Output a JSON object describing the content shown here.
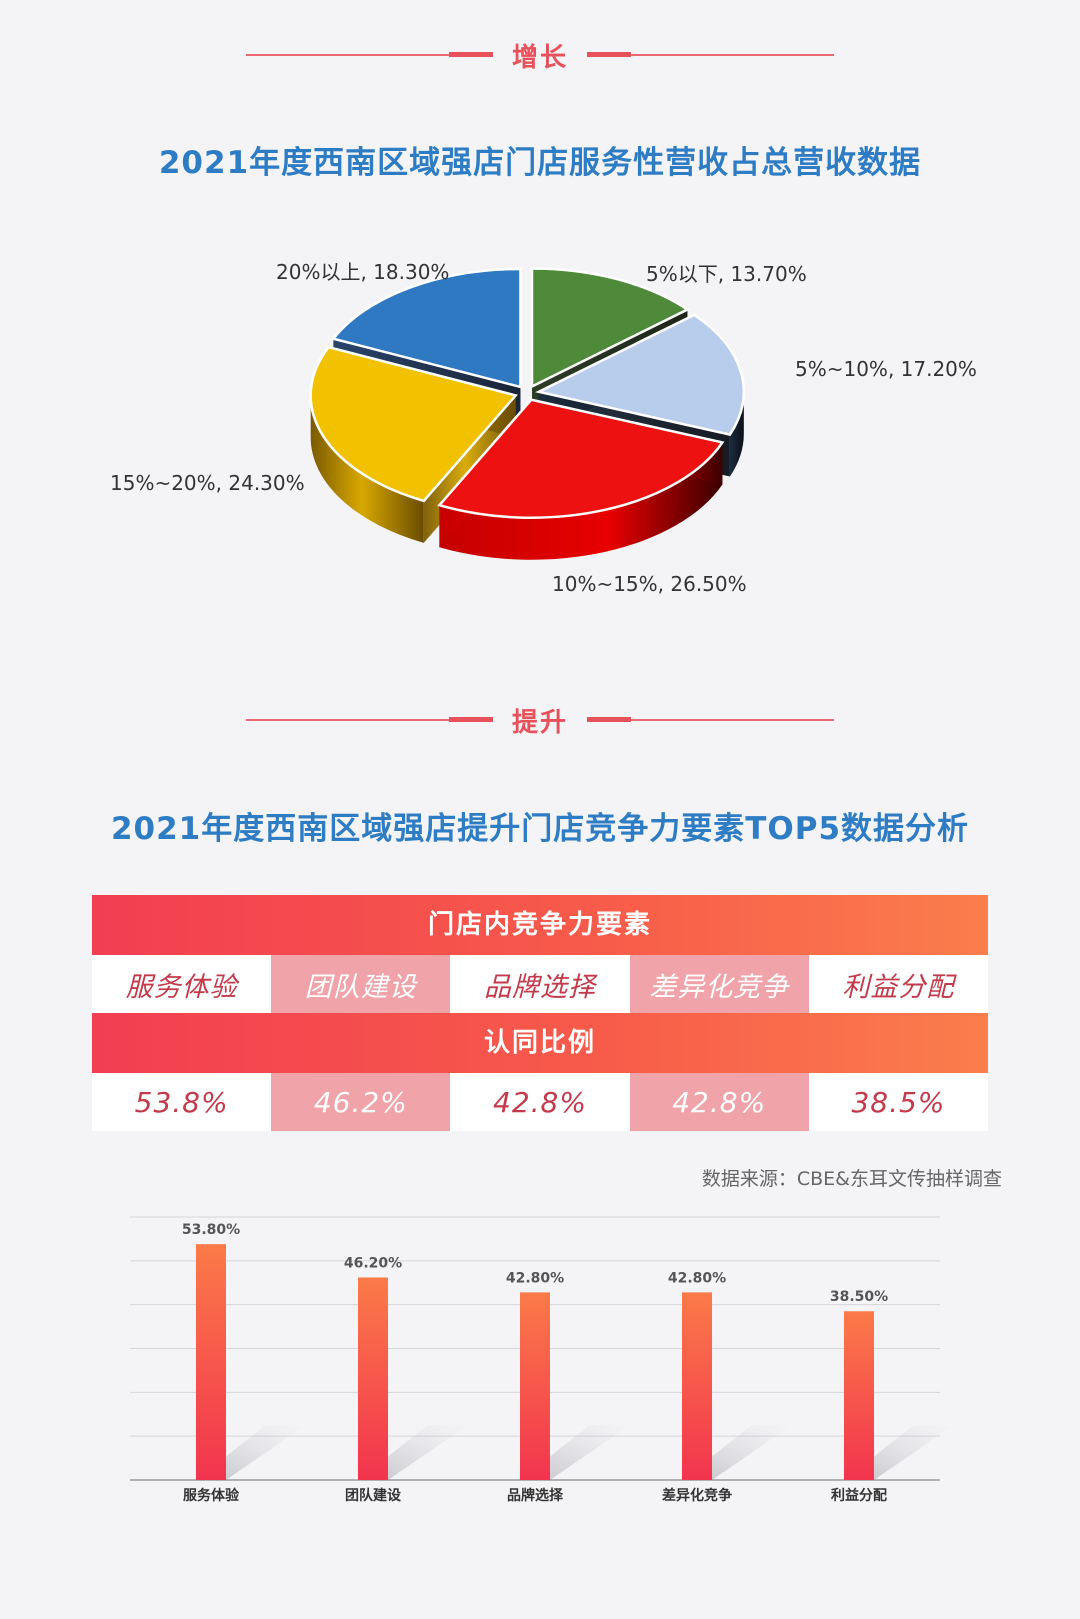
{
  "section1": {
    "label": "增长"
  },
  "section2": {
    "label": "提升"
  },
  "pie_title": "2021年度西南区域强店门店服务性营收占总营收数据",
  "table_title": "2021年度西南区域强店提升门店竞争力要素TOP5数据分析",
  "table": {
    "header1": "门店内竞争力要素",
    "factors": [
      "服务体验",
      "团队建设",
      "品牌选择",
      "差异化竞争",
      "利益分配"
    ],
    "header2": "认同比例",
    "ratios": [
      "53.8%",
      "46.2%",
      "42.8%",
      "42.8%",
      "38.5%"
    ]
  },
  "source": "数据来源：CBE&东耳文传抽样调查",
  "colors": {
    "accent_red": "#e8505a",
    "title_blue": "#2e7dc4",
    "pie": [
      "#2f78c2",
      "#4f8a3a",
      "#b8cdec",
      "#ee1111",
      "#f2c200"
    ]
  },
  "chart_data": [
    {
      "type": "pie",
      "title": "2021年度西南区域强店门店服务性营收占总营收数据",
      "slices": [
        {
          "label": "20%以上, 18.30%",
          "name": "20%以上",
          "value": 18.3
        },
        {
          "label": "5%以下, 13.70%",
          "name": "5%以下",
          "value": 13.7
        },
        {
          "label": "5%~10%, 17.20%",
          "name": "5%~10%",
          "value": 17.2
        },
        {
          "label": "10%~15%, 26.50%",
          "name": "10%~15%",
          "value": 26.5
        },
        {
          "label": "15%~20%, 24.30%",
          "name": "15%~20%",
          "value": 24.3
        }
      ]
    },
    {
      "type": "bar",
      "categories": [
        "服务体验",
        "团队建设",
        "品牌选择",
        "差异化竞争",
        "利益分配"
      ],
      "values": [
        53.8,
        46.2,
        42.8,
        42.8,
        38.5
      ],
      "value_labels": [
        "53.80%",
        "46.20%",
        "42.80%",
        "42.80%",
        "38.50%"
      ],
      "ylim": [
        0,
        60
      ],
      "grid": true
    }
  ]
}
